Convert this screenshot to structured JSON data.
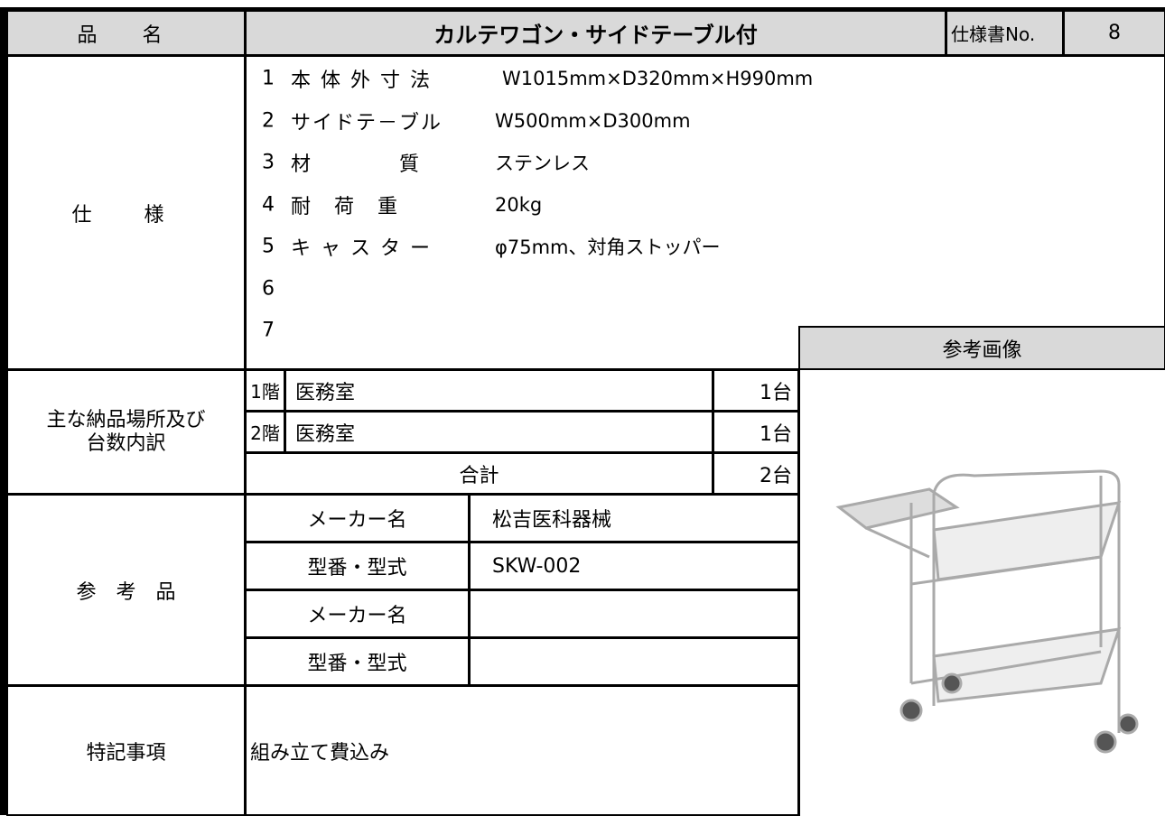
{
  "header": {
    "name_label": "品　名",
    "product": "カルテワゴン・サイドテーブル付",
    "spec_no_label": "仕様書No.",
    "spec_no": "8"
  },
  "spec": {
    "label": "仕　様",
    "items": [
      {
        "no": "1",
        "name": "本 体 外 寸 法",
        "value": "W1015mm×D320mm×H990mm"
      },
      {
        "no": "2",
        "name": "サイドテ－ブル",
        "value": "W500mm×D300mm"
      },
      {
        "no": "3",
        "name": "材　　　　質",
        "value": "ステンレス"
      },
      {
        "no": "4",
        "name": "耐　荷　重",
        "value": "20kg"
      },
      {
        "no": "5",
        "name": "キ ャ ス タ ー",
        "value": "φ75mm、対角ストッパー"
      },
      {
        "no": "6"
      },
      {
        "no": "7"
      }
    ]
  },
  "image_label": "参考画像",
  "delivery": {
    "label_lines": [
      "主な納品場所及び",
      "台数内訳"
    ],
    "rows": [
      {
        "floor": "1階",
        "room": "医務室",
        "count": "1台"
      },
      {
        "floor": "2階",
        "room": "医務室",
        "count": "1台"
      }
    ],
    "total_label": "合計",
    "total": "2台"
  },
  "reference": {
    "label": "参　考　品",
    "rows": [
      {
        "label": "メーカー名",
        "value": "松吉医科器械"
      },
      {
        "label": "型番・型式",
        "value": "SKW-002"
      },
      {
        "label": "メーカー名"
      },
      {
        "label": "型番・型式"
      }
    ]
  },
  "remarks": {
    "label": "特記事項",
    "text": "組み立て費込み"
  }
}
